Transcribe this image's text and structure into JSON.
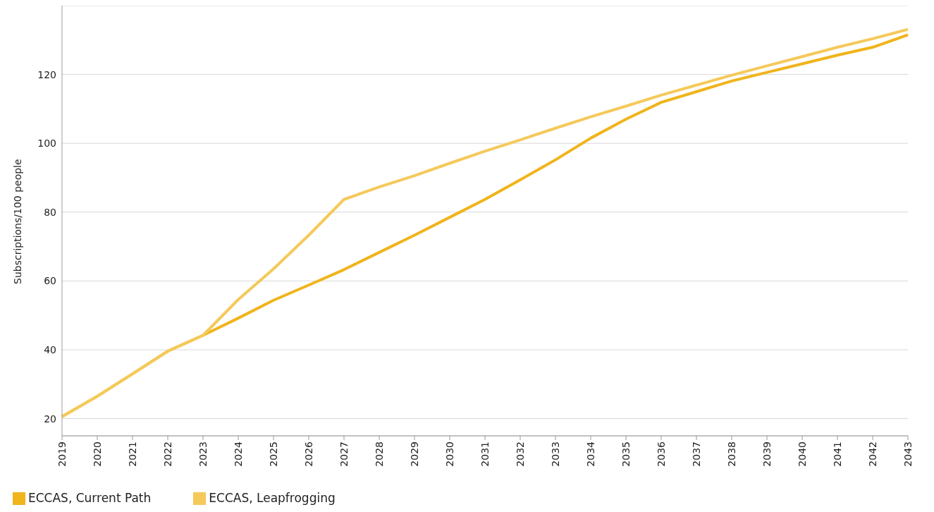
{
  "chart_data": {
    "type": "line",
    "ylabel": "Subscriptions/100 people",
    "categories": [
      "2019",
      "2020",
      "2021",
      "2022",
      "2023",
      "2024",
      "2025",
      "2026",
      "2027",
      "2028",
      "2029",
      "2030",
      "2031",
      "2032",
      "2033",
      "2034",
      "2035",
      "2036",
      "2037",
      "2038",
      "2039",
      "2040",
      "2041",
      "2042",
      "2043"
    ],
    "series": [
      {
        "name": "ECCAS, Current Path",
        "color": "#f0b41c",
        "values": [
          20.6,
          26.5,
          33,
          39.6,
          44.2,
          49.2,
          54.4,
          58.8,
          63.3,
          68.3,
          73.3,
          78.5,
          83.7,
          89.4,
          95.2,
          101.5,
          107,
          111.9,
          115,
          118.1,
          120.6,
          123.1,
          125.6,
          127.9,
          131.5
        ]
      },
      {
        "name": "ECCAS, Leapfrogging",
        "color": "#f5c95a",
        "values": [
          20.6,
          26.5,
          33,
          39.6,
          44.2,
          54.6,
          63.5,
          73.3,
          83.7,
          87.3,
          90.6,
          94.2,
          97.7,
          101,
          104.4,
          107.7,
          110.8,
          114,
          116.9,
          119.8,
          122.5,
          125.2,
          127.9,
          130.4,
          133.1
        ]
      }
    ],
    "ylim": [
      15,
      140
    ],
    "yticks": [
      20,
      40,
      60,
      80,
      100,
      120
    ],
    "grid": "y",
    "legend": "bottom left",
    "marker": "none",
    "line_style": "solid"
  }
}
